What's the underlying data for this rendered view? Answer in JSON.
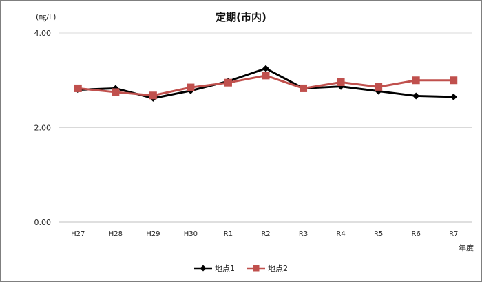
{
  "chart_data": {
    "type": "line",
    "title": "定期(市内)",
    "unit_label": "(㎎/L)",
    "xlabel": "年度",
    "ylabel": "",
    "ylim": [
      0,
      4
    ],
    "y_ticks": [
      "0.00",
      "2.00",
      "4.00"
    ],
    "y_tick_values": [
      0,
      2,
      4
    ],
    "categories": [
      "H27",
      "H28",
      "H29",
      "H30",
      "R1",
      "R2",
      "R3",
      "R4",
      "R5",
      "R6",
      "R7"
    ],
    "grid": true,
    "legend_position": "bottom",
    "series": [
      {
        "name": "地点1",
        "color": "#000000",
        "marker": "diamond",
        "values": [
          2.8,
          2.83,
          2.62,
          2.78,
          2.98,
          3.25,
          2.83,
          2.87,
          2.77,
          2.67,
          2.65
        ]
      },
      {
        "name": "地点2",
        "color": "#c0504d",
        "marker": "square",
        "values": [
          2.83,
          2.75,
          2.68,
          2.85,
          2.95,
          3.1,
          2.83,
          2.96,
          2.86,
          3.0,
          3.0
        ]
      }
    ]
  }
}
